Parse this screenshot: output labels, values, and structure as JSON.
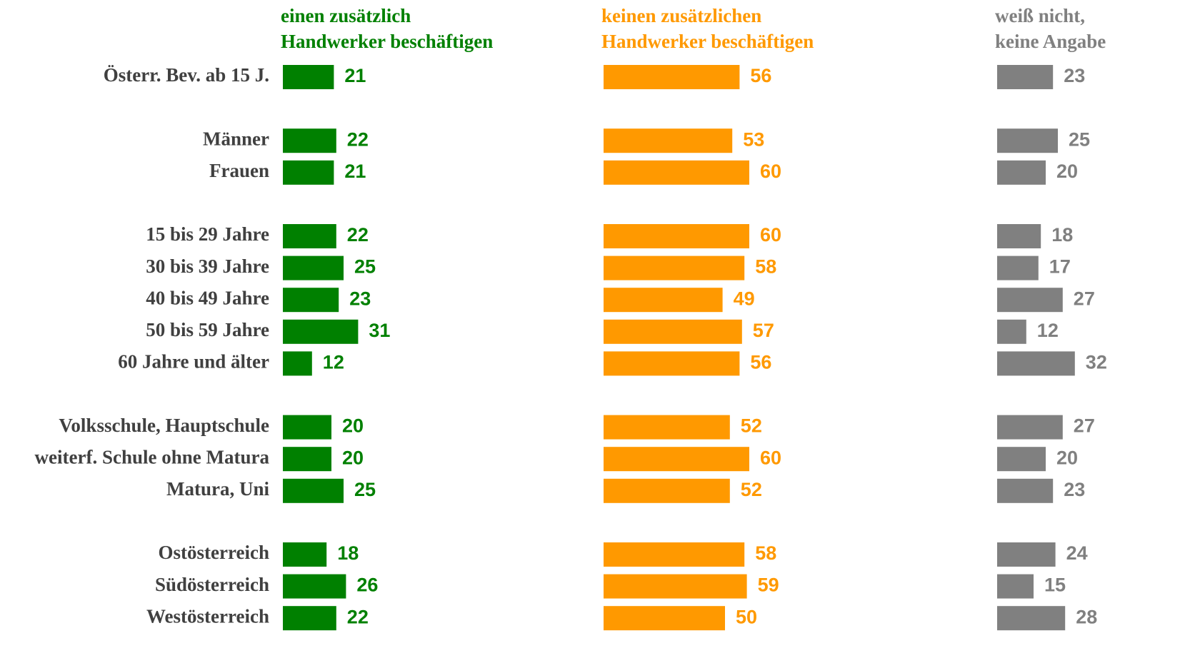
{
  "chart_data": {
    "type": "bar",
    "orientation": "horizontal",
    "categories": [
      "Österr. Bev. ab 15 J.",
      null,
      "Männer",
      "Frauen",
      null,
      "15 bis 29 Jahre",
      "30 bis 39 Jahre",
      "40 bis 49 Jahre",
      "50 bis 59 Jahre",
      "60 Jahre und älter",
      null,
      "Volksschule, Hauptschule",
      "weiterf. Schule ohne Matura",
      "Matura, Uni",
      null,
      "Ostösterreich",
      "Südösterreich",
      "Westösterreich"
    ],
    "series": [
      {
        "name": "einen zusätzlich\nHandwerker beschäftigen",
        "color": "#008000",
        "values": [
          21,
          null,
          22,
          21,
          null,
          22,
          25,
          23,
          31,
          12,
          null,
          20,
          20,
          25,
          null,
          18,
          26,
          22
        ]
      },
      {
        "name": "keinen zusätzlichen\nHandwerker beschäftigen",
        "color": "#ff9900",
        "values": [
          56,
          null,
          53,
          60,
          null,
          60,
          58,
          49,
          57,
          56,
          null,
          52,
          60,
          52,
          null,
          58,
          59,
          50
        ]
      },
      {
        "name": "weiß nicht,\nkeine Angabe",
        "color": "#808080",
        "values": [
          23,
          null,
          25,
          20,
          null,
          18,
          17,
          27,
          12,
          32,
          null,
          27,
          20,
          23,
          null,
          24,
          15,
          28
        ]
      }
    ]
  }
}
